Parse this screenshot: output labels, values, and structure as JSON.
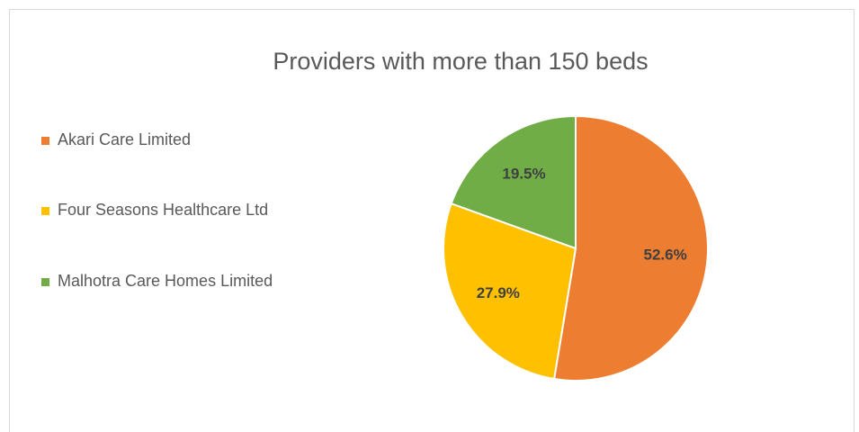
{
  "chart_data": {
    "type": "pie",
    "title": "Providers with more than 150 beds",
    "categories": [
      "Akari Care Limited",
      "Four Seasons Healthcare Ltd",
      "Malhotra Care Homes Limited"
    ],
    "values": [
      52.6,
      27.9,
      19.5
    ],
    "value_labels": [
      "52.6%",
      "27.9%",
      "19.5%"
    ],
    "colors": [
      "#ed7d31",
      "#ffc000",
      "#70ad47"
    ],
    "legend": "left"
  }
}
